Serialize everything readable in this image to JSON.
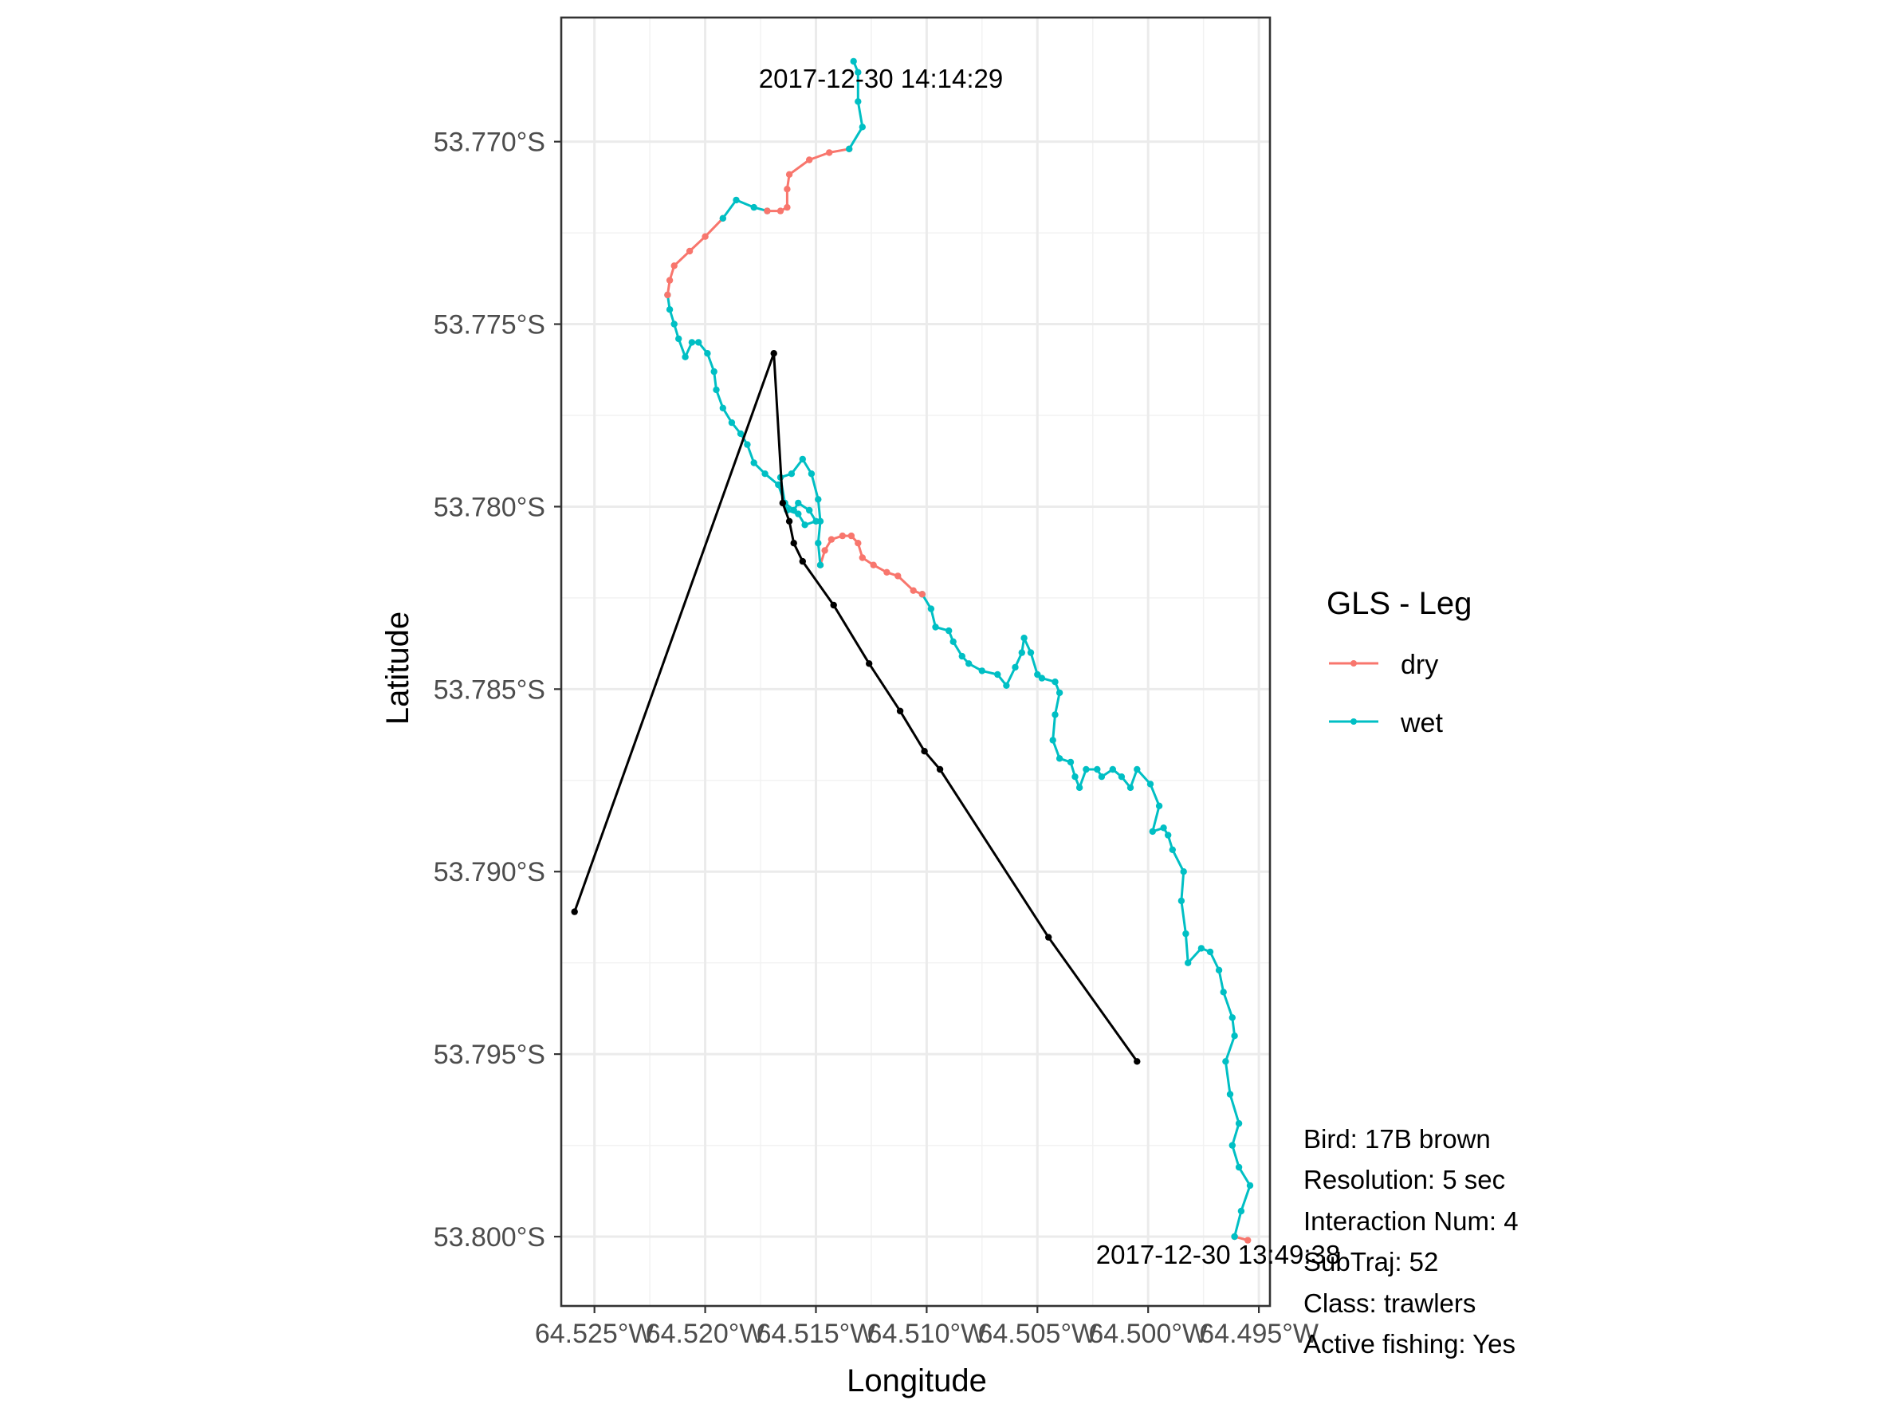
{
  "chart_data": {
    "type": "line",
    "xlabel": "Longitude",
    "ylabel": "Latitude",
    "xlim": [
      64.5265,
      64.4945
    ],
    "ylim": [
      53.8019,
      53.7666
    ],
    "x_ticks": [
      {
        "value": 64.525,
        "label": "64.525°W"
      },
      {
        "value": 64.52,
        "label": "64.520°W"
      },
      {
        "value": 64.515,
        "label": "64.515°W"
      },
      {
        "value": 64.51,
        "label": "64.510°W"
      },
      {
        "value": 64.505,
        "label": "64.505°W"
      },
      {
        "value": 64.5,
        "label": "64.500°W"
      },
      {
        "value": 64.495,
        "label": "64.495°W"
      }
    ],
    "y_ticks": [
      {
        "value": 53.77,
        "label": "53.770°S"
      },
      {
        "value": 53.775,
        "label": "53.775°S"
      },
      {
        "value": 53.78,
        "label": "53.780°S"
      },
      {
        "value": 53.785,
        "label": "53.785°S"
      },
      {
        "value": 53.79,
        "label": "53.790°S"
      },
      {
        "value": 53.795,
        "label": "53.795°S"
      },
      {
        "value": 53.8,
        "label": "53.800°S"
      }
    ],
    "grid": true,
    "legend": {
      "title": "GLS - Leg",
      "position": "right",
      "entries": [
        {
          "name": "dry",
          "color": "#F8766D"
        },
        {
          "name": "wet",
          "color": "#00BFC4"
        }
      ]
    },
    "series": [
      {
        "name": "dry",
        "color": "#F8766D",
        "points": [
          [
            64.4955,
            53.8001
          ],
          [
            64.4961,
            53.8
          ]
        ]
      },
      {
        "name": "wet",
        "color": "#00BFC4",
        "points": [
          [
            64.4961,
            53.8
          ],
          [
            64.4958,
            53.7993
          ],
          [
            64.4954,
            53.7986
          ],
          [
            64.4959,
            53.7981
          ],
          [
            64.4962,
            53.7975
          ],
          [
            64.4959,
            53.7969
          ],
          [
            64.4963,
            53.7961
          ],
          [
            64.4965,
            53.7952
          ],
          [
            64.4961,
            53.7945
          ],
          [
            64.4962,
            53.794
          ],
          [
            64.4966,
            53.7933
          ],
          [
            64.4968,
            53.7927
          ],
          [
            64.4972,
            53.7922
          ],
          [
            64.4976,
            53.7921
          ],
          [
            64.4982,
            53.7925
          ],
          [
            64.4983,
            53.7917
          ],
          [
            64.4985,
            53.7908
          ],
          [
            64.4984,
            53.79
          ],
          [
            64.4989,
            53.7894
          ],
          [
            64.4991,
            53.789
          ],
          [
            64.4993,
            53.7888
          ],
          [
            64.4998,
            53.7889
          ],
          [
            64.4995,
            53.7882
          ],
          [
            64.4999,
            53.7876
          ],
          [
            64.5005,
            53.7872
          ],
          [
            64.5008,
            53.7877
          ],
          [
            64.5012,
            53.7874
          ],
          [
            64.5016,
            53.7872
          ],
          [
            64.5021,
            53.7874
          ],
          [
            64.5023,
            53.7872
          ],
          [
            64.5028,
            53.7872
          ],
          [
            64.5031,
            53.7877
          ],
          [
            64.5033,
            53.7874
          ],
          [
            64.5035,
            53.787
          ],
          [
            64.504,
            53.7869
          ],
          [
            64.5043,
            53.7864
          ],
          [
            64.5042,
            53.7857
          ],
          [
            64.504,
            53.7851
          ],
          [
            64.5042,
            53.7848
          ],
          [
            64.5048,
            53.7847
          ],
          [
            64.505,
            53.7846
          ],
          [
            64.5053,
            53.784
          ],
          [
            64.5056,
            53.7836
          ],
          [
            64.5057,
            53.784
          ],
          [
            64.506,
            53.7844
          ],
          [
            64.5064,
            53.7849
          ],
          [
            64.5068,
            53.7846
          ],
          [
            64.5075,
            53.7845
          ],
          [
            64.5081,
            53.7843
          ],
          [
            64.5084,
            53.7841
          ],
          [
            64.5088,
            53.7837
          ],
          [
            64.509,
            53.7834
          ],
          [
            64.5096,
            53.7833
          ],
          [
            64.5098,
            53.7828
          ],
          [
            64.5102,
            53.7824
          ]
        ]
      },
      {
        "name": "dry",
        "color": "#F8766D",
        "points": [
          [
            64.5102,
            53.7824
          ],
          [
            64.5106,
            53.7823
          ],
          [
            64.5113,
            53.7819
          ],
          [
            64.5118,
            53.7818
          ],
          [
            64.5124,
            53.7816
          ],
          [
            64.5129,
            53.7814
          ],
          [
            64.5131,
            53.781
          ],
          [
            64.5134,
            53.7808
          ],
          [
            64.5138,
            53.7808
          ],
          [
            64.5143,
            53.7809
          ],
          [
            64.5146,
            53.7812
          ],
          [
            64.5148,
            53.7816
          ]
        ]
      },
      {
        "name": "wet",
        "color": "#00BFC4",
        "points": [
          [
            64.5148,
            53.7816
          ],
          [
            64.5149,
            53.781
          ],
          [
            64.5148,
            53.7804
          ],
          [
            64.5149,
            53.7798
          ],
          [
            64.5152,
            53.7791
          ],
          [
            64.5156,
            53.7787
          ],
          [
            64.5161,
            53.7791
          ],
          [
            64.5166,
            53.7792
          ],
          [
            64.5164,
            53.7799
          ],
          [
            64.516,
            53.7801
          ],
          [
            64.5158,
            53.7799
          ],
          [
            64.5153,
            53.7801
          ],
          [
            64.515,
            53.7804
          ],
          [
            64.5155,
            53.7805
          ],
          [
            64.5158,
            53.7802
          ],
          [
            64.5163,
            53.7801
          ],
          [
            64.5167,
            53.7794
          ],
          [
            64.5173,
            53.7791
          ],
          [
            64.5178,
            53.7788
          ],
          [
            64.5181,
            53.7783
          ],
          [
            64.5184,
            53.778
          ],
          [
            64.5188,
            53.7777
          ],
          [
            64.5192,
            53.7773
          ],
          [
            64.5195,
            53.7768
          ],
          [
            64.5196,
            53.7763
          ],
          [
            64.5199,
            53.7758
          ],
          [
            64.5203,
            53.7755
          ],
          [
            64.5206,
            53.7755
          ],
          [
            64.5209,
            53.7759
          ],
          [
            64.5212,
            53.7754
          ],
          [
            64.5214,
            53.775
          ],
          [
            64.5216,
            53.7746
          ],
          [
            64.5217,
            53.7742
          ]
        ]
      },
      {
        "name": "dry",
        "color": "#F8766D",
        "points": [
          [
            64.5217,
            53.7742
          ],
          [
            64.5216,
            53.7738
          ],
          [
            64.5214,
            53.7734
          ],
          [
            64.5207,
            53.773
          ],
          [
            64.52,
            53.7726
          ],
          [
            64.5192,
            53.7721
          ]
        ]
      },
      {
        "name": "wet",
        "color": "#00BFC4",
        "points": [
          [
            64.5192,
            53.7721
          ],
          [
            64.5186,
            53.7716
          ],
          [
            64.5178,
            53.7718
          ],
          [
            64.5172,
            53.7719
          ]
        ]
      },
      {
        "name": "dry",
        "color": "#F8766D",
        "points": [
          [
            64.5172,
            53.7719
          ],
          [
            64.5166,
            53.7719
          ],
          [
            64.5163,
            53.7718
          ],
          [
            64.5163,
            53.7713
          ],
          [
            64.5162,
            53.7709
          ],
          [
            64.5153,
            53.7705
          ],
          [
            64.5144,
            53.7703
          ],
          [
            64.5135,
            53.7702
          ]
        ]
      },
      {
        "name": "wet",
        "color": "#00BFC4",
        "points": [
          [
            64.5135,
            53.7702
          ],
          [
            64.5129,
            53.7696
          ],
          [
            64.5131,
            53.7689
          ],
          [
            64.5131,
            53.7681
          ],
          [
            64.5133,
            53.7678
          ]
        ]
      },
      {
        "name": "track",
        "color": "#000000",
        "points": [
          [
            64.5005,
            53.7952
          ],
          [
            64.5045,
            53.7918
          ],
          [
            64.5094,
            53.7872
          ],
          [
            64.5101,
            53.7867
          ],
          [
            64.5112,
            53.7856
          ],
          [
            64.5126,
            53.7843
          ],
          [
            64.5142,
            53.7827
          ],
          [
            64.5156,
            53.7815
          ],
          [
            64.516,
            53.781
          ],
          [
            64.5162,
            53.7804
          ],
          [
            64.5165,
            53.7799
          ],
          [
            64.5169,
            53.7758
          ],
          [
            64.5259,
            53.7911
          ]
        ]
      }
    ],
    "annotations": {
      "start_time": "2017-12-30 14:14:29",
      "end_time": "2017-12-30 13:49:38",
      "info": [
        "Bird: 17B brown",
        "Resolution: 5 sec",
        "Interaction Num: 4",
        "SubTraj: 52",
        "Class: trawlers",
        "Active fishing: Yes"
      ]
    }
  }
}
